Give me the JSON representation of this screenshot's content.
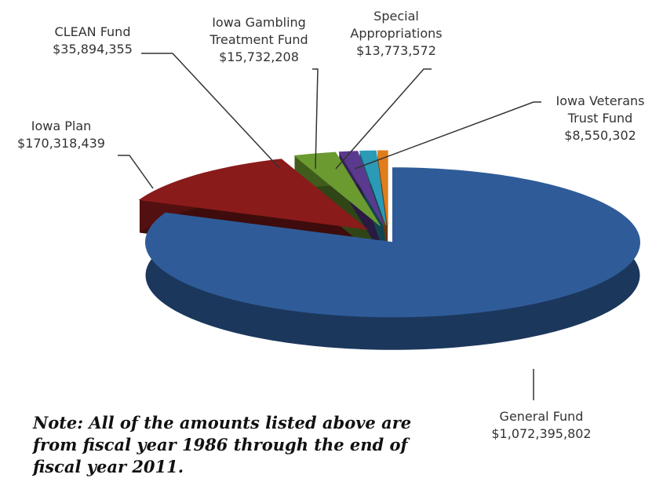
{
  "chart_data": {
    "type": "pie",
    "categories": [
      "General Fund",
      "Iowa Plan",
      "CLEAN Fund",
      "Iowa Gambling Treatment Fund",
      "Special Appropriations",
      "Iowa Veterans Trust Fund"
    ],
    "values": [
      1072395802,
      170318439,
      35894355,
      15732208,
      13773572,
      8550302
    ],
    "value_labels": [
      "$1,072,395,802",
      "$170,318,439",
      "$35,894,355",
      "$15,732,208",
      "$13,773,572",
      "$8,550,302"
    ],
    "colors": [
      "#2f5c99",
      "#8a1b1b",
      "#6b9a30",
      "#5a3a8e",
      "#2b9ab6",
      "#e07c1c"
    ],
    "note": "Note: All of the amounts listed above are from fiscal year 1986 through the end of fiscal year 2011."
  }
}
